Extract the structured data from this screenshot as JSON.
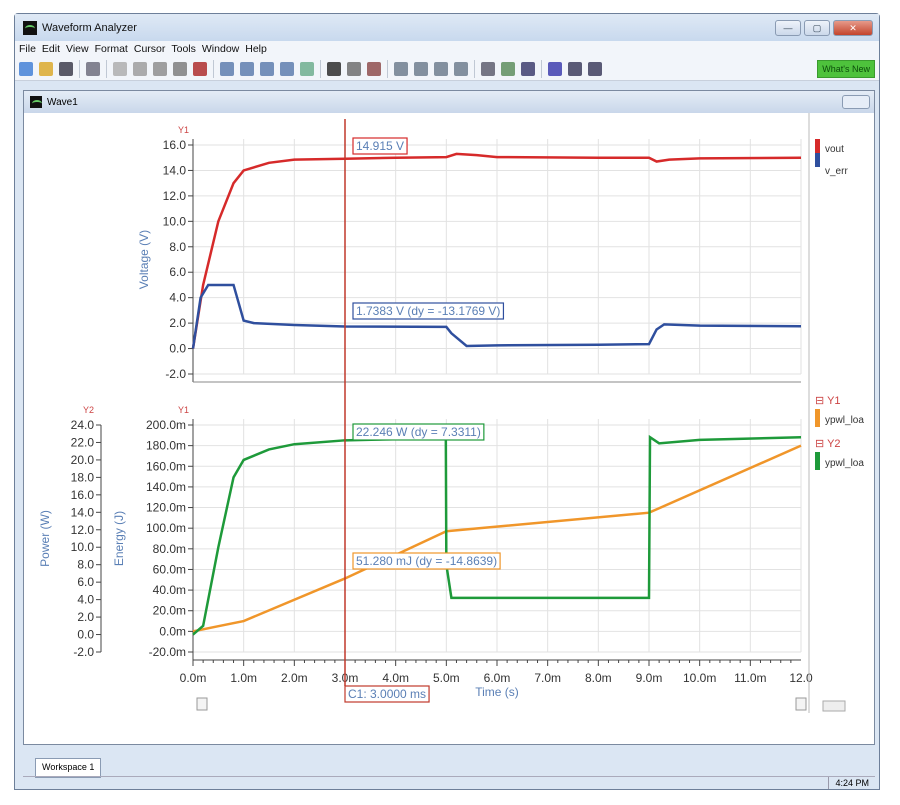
{
  "app": {
    "title": "Waveform Analyzer",
    "window_buttons": [
      "minimize",
      "maximize",
      "close"
    ]
  },
  "menu": [
    "File",
    "Edit",
    "View",
    "Format",
    "Cursor",
    "Tools",
    "Window",
    "Help"
  ],
  "toolbar": {
    "icons": [
      "new-icon",
      "open-icon",
      "save-icon",
      "print-icon",
      "cut-icon",
      "copy-icon",
      "paste-icon",
      "delete-icon",
      "stop-icon",
      "add-trace-icon",
      "remove-trace-icon",
      "trace-up-icon",
      "trace-down-icon",
      "marker-icon",
      "cursor-icon",
      "grid-icon",
      "fit-icon",
      "zoom-in-icon",
      "zoom-area-icon",
      "zoom-out-icon",
      "zoom-fit-icon",
      "measure-icon",
      "chart-icon",
      "layout-icon",
      "cascade-icon",
      "tile-horizontal-icon",
      "tile-vertical-icon"
    ],
    "whats_new": "What's New"
  },
  "wave_window": {
    "title": "Wave1"
  },
  "cursor": {
    "label": "C1: 3.0000 ms",
    "time_ms": 3.0,
    "color": "#c0392b"
  },
  "colors": {
    "vout": "#d62a2a",
    "v_err": "#2f4f9e",
    "power": "#1e9a3a",
    "energy": "#f0962a",
    "axis_label": "#5a7fb5"
  },
  "top_plot": {
    "axis_tag": "Y1",
    "ylabel": "Voltage (V)",
    "readouts": [
      "14.915 V",
      "1.7383 V (dy = -13.1769 V)"
    ],
    "legend": [
      "vout",
      "v_err"
    ]
  },
  "bottom_plot": {
    "axis_tag_left": "Y2",
    "axis_tag_right": "Y1",
    "ylabel_power": "Power (W)",
    "ylabel_energy": "Energy (J)",
    "readouts": [
      "22.246 W (dy = 7.3311)",
      "51.280 mJ (dy = -14.8639)"
    ],
    "legend": [
      {
        "group": "Y1",
        "name": "ypwl_loa"
      },
      {
        "group": "Y2",
        "name": "ypwl_loa"
      }
    ]
  },
  "xaxis": {
    "label": "Time (s)",
    "ticks": [
      "0.0m",
      "1.0m",
      "2.0m",
      "3.0m",
      "4.0m",
      "5.0m",
      "6.0m",
      "7.0m",
      "8.0m",
      "9.0m",
      "10.0m",
      "11.0m",
      "12.0"
    ]
  },
  "workspace_tab": "Workspace 1",
  "status": {
    "time": "4:24 PM"
  },
  "chart_data": [
    {
      "type": "line",
      "ylabel": "Voltage (V)",
      "xlabel": "Time (s)",
      "xlim": [
        0,
        12
      ],
      "x_unit": "ms",
      "ylim": [
        -2,
        16
      ],
      "yticks": [
        "16.0",
        "14.0",
        "12.0",
        "10.0",
        "8.0",
        "6.0",
        "4.0",
        "2.0",
        "0.0",
        "-2.0"
      ],
      "grid": true,
      "legend": "right",
      "series": [
        {
          "name": "vout",
          "x": [
            0,
            0.2,
            0.5,
            0.8,
            1.0,
            1.5,
            2,
            3,
            4,
            5,
            5.2,
            5.6,
            6,
            8,
            9,
            9.15,
            9.4,
            10,
            12
          ],
          "y": [
            0,
            5,
            10,
            13,
            14,
            14.6,
            14.85,
            14.915,
            15,
            15.05,
            15.3,
            15.2,
            15.05,
            15,
            15,
            14.7,
            14.85,
            14.95,
            15
          ]
        },
        {
          "name": "v_err",
          "x": [
            0,
            0.15,
            0.3,
            0.8,
            1.0,
            1.2,
            2,
            3,
            5,
            5.1,
            5.4,
            6,
            8,
            9,
            9.15,
            9.3,
            10,
            12
          ],
          "y": [
            0,
            4,
            5,
            5,
            2.2,
            2.0,
            1.85,
            1.7383,
            1.7,
            1.2,
            0.2,
            0.25,
            0.3,
            0.35,
            1.5,
            1.9,
            1.8,
            1.75
          ]
        }
      ]
    },
    {
      "type": "line",
      "xlabel": "Time (s)",
      "xlim": [
        0,
        12
      ],
      "x_unit": "ms",
      "grid": true,
      "legend": "right",
      "y_energy": {
        "label": "Energy (J)",
        "ylim": [
          -0.02,
          0.2
        ],
        "ticks": [
          "200.0m",
          "180.0m",
          "160.0m",
          "140.0m",
          "120.0m",
          "100.0m",
          "80.0m",
          "60.0m",
          "40.0m",
          "20.0m",
          "0.0m",
          "-20.0m"
        ]
      },
      "y_power": {
        "label": "Power (W)",
        "ylim": [
          -2,
          24
        ],
        "ticks": [
          "24.0",
          "22.0",
          "20.0",
          "18.0",
          "16.0",
          "14.0",
          "12.0",
          "10.0",
          "8.0",
          "6.0",
          "4.0",
          "2.0",
          "0.0",
          "-2.0"
        ]
      },
      "series": [
        {
          "name": "ypwl_loa",
          "axis": "Y1",
          "unit": "J",
          "x": [
            0,
            0.5,
            1,
            3,
            5,
            9,
            12
          ],
          "y": [
            0,
            0.005,
            0.01,
            0.05128,
            0.097,
            0.115,
            0.18
          ]
        },
        {
          "name": "ypwl_loa",
          "axis": "Y2",
          "unit": "W",
          "x": [
            0,
            0.2,
            0.5,
            0.8,
            1.0,
            1.5,
            2,
            3,
            4.99,
            5.0,
            5.1,
            9.0,
            9.02,
            9.2,
            10,
            12
          ],
          "y": [
            0,
            1,
            10,
            18,
            20,
            21.2,
            21.8,
            22.246,
            22.5,
            8,
            4.2,
            4.2,
            22.6,
            21.9,
            22.3,
            22.6
          ]
        }
      ]
    }
  ]
}
